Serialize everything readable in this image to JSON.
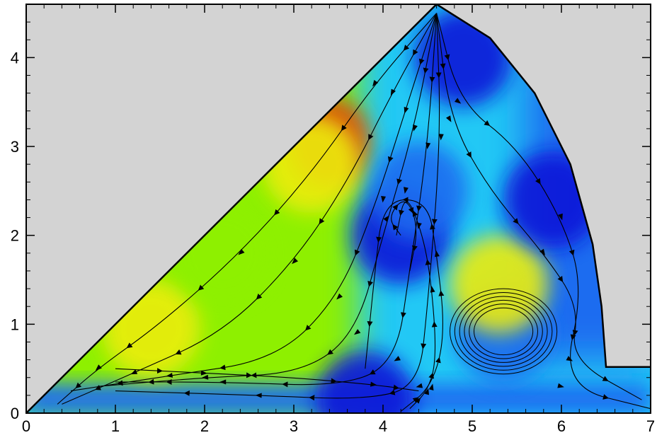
{
  "chart_data": {
    "type": "contour",
    "title": "",
    "xlabel": "",
    "ylabel": "",
    "xlim": [
      0,
      7
    ],
    "ylim": [
      0,
      4.6
    ],
    "x_ticks": [
      "0",
      "1",
      "2",
      "3",
      "4",
      "5",
      "6",
      "7"
    ],
    "y_ticks": [
      "0",
      "1",
      "2",
      "3",
      "4"
    ],
    "legend": "none",
    "grid": false,
    "domain_boundary": [
      [
        0,
        0
      ],
      [
        4.6,
        4.6
      ],
      [
        5.2,
        4.22
      ],
      [
        5.7,
        3.6
      ],
      [
        6.1,
        2.8
      ],
      [
        6.35,
        1.9
      ],
      [
        6.45,
        1.2
      ],
      [
        6.5,
        0.52
      ],
      [
        7,
        0.52
      ],
      [
        7,
        0
      ]
    ],
    "masked_region_color": "#d3d3d3",
    "colormap": [
      "#0a14d8",
      "#1e6cf0",
      "#21c8f5",
      "#2cf2e8",
      "#50e84a",
      "#8ef000",
      "#ecec10",
      "#f08020",
      "#e03c10"
    ],
    "contour_blobs": [
      {
        "x": 3.4,
        "y": 3.05,
        "level": 8
      },
      {
        "x": 3.2,
        "y": 2.8,
        "level": 6
      },
      {
        "x": 1.4,
        "y": 0.95,
        "level": 6
      },
      {
        "x": 2.2,
        "y": 1.8,
        "level": 5
      },
      {
        "x": 4.2,
        "y": 2.0,
        "level": 0
      },
      {
        "x": 4.4,
        "y": 2.5,
        "level": 1
      },
      {
        "x": 5.35,
        "y": 0.9,
        "level": 1
      },
      {
        "x": 5.3,
        "y": 1.45,
        "level": 6
      },
      {
        "x": 4.9,
        "y": 4.0,
        "level": 0
      },
      {
        "x": 5.9,
        "y": 2.4,
        "level": 0
      },
      {
        "x": 3.8,
        "y": 0.15,
        "level": 0
      }
    ],
    "streamlines": [
      [
        [
          4.6,
          4.5
        ],
        [
          3.9,
          3.7
        ],
        [
          3.2,
          2.7
        ],
        [
          2.4,
          1.8
        ],
        [
          1.5,
          1.0
        ],
        [
          0.8,
          0.5
        ],
        [
          0.35,
          0.1
        ]
      ],
      [
        [
          4.6,
          4.5
        ],
        [
          4.1,
          3.6
        ],
        [
          3.6,
          2.6
        ],
        [
          3.0,
          1.7
        ],
        [
          2.2,
          0.9
        ],
        [
          1.2,
          0.45
        ],
        [
          0.4,
          0.1
        ]
      ],
      [
        [
          4.6,
          4.5
        ],
        [
          4.25,
          3.4
        ],
        [
          3.9,
          2.3
        ],
        [
          3.5,
          1.3
        ],
        [
          2.8,
          0.6
        ],
        [
          1.6,
          0.42
        ],
        [
          0.5,
          0.25
        ]
      ],
      [
        [
          4.6,
          4.5
        ],
        [
          4.35,
          3.2
        ],
        [
          4.0,
          2.0
        ],
        [
          3.7,
          0.9
        ],
        [
          3.1,
          0.45
        ],
        [
          2.0,
          0.4
        ],
        [
          0.8,
          0.3
        ]
      ],
      [
        [
          4.6,
          4.5
        ],
        [
          4.5,
          3.0
        ],
        [
          4.3,
          1.6
        ],
        [
          4.15,
          0.6
        ],
        [
          3.6,
          0.3
        ],
        [
          2.2,
          0.35
        ],
        [
          1.0,
          0.35
        ]
      ],
      [
        [
          4.6,
          4.5
        ],
        [
          4.65,
          3.1
        ],
        [
          4.5,
          1.2
        ],
        [
          4.4,
          0.3
        ],
        [
          3.8,
          0.15
        ],
        [
          2.6,
          0.2
        ],
        [
          1.0,
          0.25
        ]
      ],
      [
        [
          4.6,
          4.5
        ],
        [
          4.75,
          3.3
        ],
        [
          5.2,
          2.5
        ],
        [
          5.8,
          1.8
        ],
        [
          6.2,
          1.2
        ],
        [
          6.1,
          0.6
        ],
        [
          6.9,
          0.15
        ]
      ],
      [
        [
          4.6,
          4.5
        ],
        [
          4.85,
          3.5
        ],
        [
          5.5,
          3.0
        ],
        [
          6.0,
          2.2
        ],
        [
          6.25,
          1.4
        ],
        [
          6.0,
          0.3
        ],
        [
          7.0,
          0.05
        ]
      ],
      [
        [
          4.2,
          0.02
        ],
        [
          4.55,
          0.3
        ],
        [
          4.7,
          0.9
        ],
        [
          4.6,
          1.8
        ],
        [
          4.5,
          2.4
        ],
        [
          4.0,
          2.4
        ],
        [
          3.9,
          1.5
        ],
        [
          3.8,
          0.5
        ]
      ],
      [
        [
          4.2,
          2.0
        ],
        [
          4.05,
          2.2
        ],
        [
          4.25,
          2.45
        ],
        [
          4.4,
          2.1
        ],
        [
          4.3,
          1.6
        ]
      ],
      [
        [
          4.3,
          0.05
        ],
        [
          4.5,
          0.25
        ],
        [
          4.6,
          0.6
        ],
        [
          4.55,
          1.4
        ],
        [
          4.45,
          2.0
        ],
        [
          4.25,
          2.5
        ],
        [
          4.15,
          2.0
        ]
      ],
      [
        [
          1.0,
          0.5
        ],
        [
          2.0,
          0.45
        ],
        [
          3.0,
          0.4
        ],
        [
          3.9,
          0.32
        ],
        [
          4.4,
          0.25
        ]
      ]
    ],
    "vortex": {
      "cx": 5.35,
      "cy": 0.92,
      "rings": 6,
      "outer_rx": 0.6,
      "outer_ry": 0.48
    }
  }
}
